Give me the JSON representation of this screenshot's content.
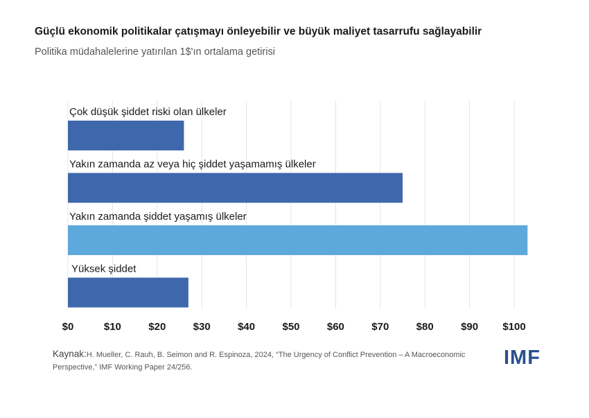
{
  "title": "Güçlü ekonomik politikalar çatışmayı önleyebilir ve büyük maliyet tasarrufu sağlayabilir",
  "subtitle": "Politika müdahalelerine yatırılan 1$'ın ortalama getirisi",
  "source": {
    "label": "Kaynak:",
    "text": "H. Mueller, C. Rauh, B. Seimon and R. Espinoza, 2024, “The Urgency of Conflict Prevention – A Macroeconomic Perspective,” IMF Working Paper 24/256."
  },
  "logo": "IMF",
  "colors": {
    "dark_bar": "#3f68ac",
    "light_bar": "#5ea9db",
    "grid": "#e4e4e4"
  },
  "chart_data": {
    "type": "bar",
    "orientation": "horizontal",
    "categories": [
      "Çok düşük şiddet riski olan ülkeler",
      "Yakın zamanda az veya hiç şiddet yaşamamış ülkeler",
      "Yakın zamanda şiddet yaşamış ülkeler",
      "Yüksek şiddet"
    ],
    "values": [
      26,
      75,
      103,
      27
    ],
    "bar_colors": [
      "#3f68ac",
      "#3f68ac",
      "#5ea9db",
      "#3f68ac"
    ],
    "xlim": [
      0,
      100
    ],
    "xticks": [
      0,
      10,
      20,
      30,
      40,
      50,
      60,
      70,
      80,
      90,
      100
    ],
    "tick_labels": [
      "$0",
      "$10",
      "$20",
      "$30",
      "$40",
      "$50",
      "$60",
      "$70",
      "$80",
      "$90",
      "$100"
    ],
    "grid": true,
    "xlabel": "",
    "ylabel": ""
  }
}
